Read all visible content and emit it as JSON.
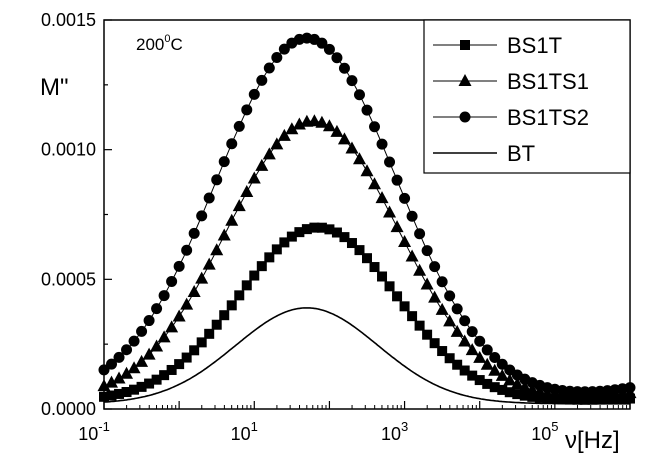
{
  "chart_data": {
    "type": "line",
    "annotation": "200",
    "annotation_sup": "0",
    "annotation_unit": "C",
    "ylabel": "M\"",
    "xlabel": "ν[Hz]",
    "x_scale": "log",
    "xlim": [
      0.1,
      1000000
    ],
    "ylim": [
      0,
      0.0015
    ],
    "x_ticks": [
      {
        "value": 0.1,
        "base": "10",
        "exp": "-1"
      },
      {
        "value": 10,
        "base": "10",
        "exp": "1"
      },
      {
        "value": 1000,
        "base": "10",
        "exp": "3"
      },
      {
        "value": 100000,
        "base": "10",
        "exp": "5"
      }
    ],
    "y_ticks": [
      {
        "value": 0,
        "label": "0.0000"
      },
      {
        "value": 0.0005,
        "label": "0.0005"
      },
      {
        "value": 0.001,
        "label": "0.0010"
      },
      {
        "value": 0.0015,
        "label": "0.0015"
      }
    ],
    "legend_position": "top-right",
    "series": [
      {
        "name": "BS1T",
        "marker": "square",
        "peak_freq": 70,
        "peak_value": 0.0007,
        "width_decades": 1.05,
        "baseline": 3e-05,
        "tail_point": [
          1000000,
          4e-05
        ]
      },
      {
        "name": "BS1TS1",
        "marker": "triangle",
        "peak_freq": 60,
        "peak_value": 0.00111,
        "width_decades": 1.15,
        "baseline": 3e-05,
        "tail_point": [
          1000000,
          6e-05
        ]
      },
      {
        "name": "BS1TS2",
        "marker": "circle",
        "peak_freq": 50,
        "peak_value": 0.00143,
        "width_decades": 1.2,
        "baseline": 4e-05,
        "tail_point": [
          1000000,
          8e-05
        ]
      },
      {
        "name": "BT",
        "marker": "none",
        "peak_freq": 50,
        "peak_value": 0.00039,
        "width_decades": 0.95,
        "baseline": 2e-05,
        "tail_point": [
          1000000,
          2e-05
        ]
      }
    ]
  }
}
